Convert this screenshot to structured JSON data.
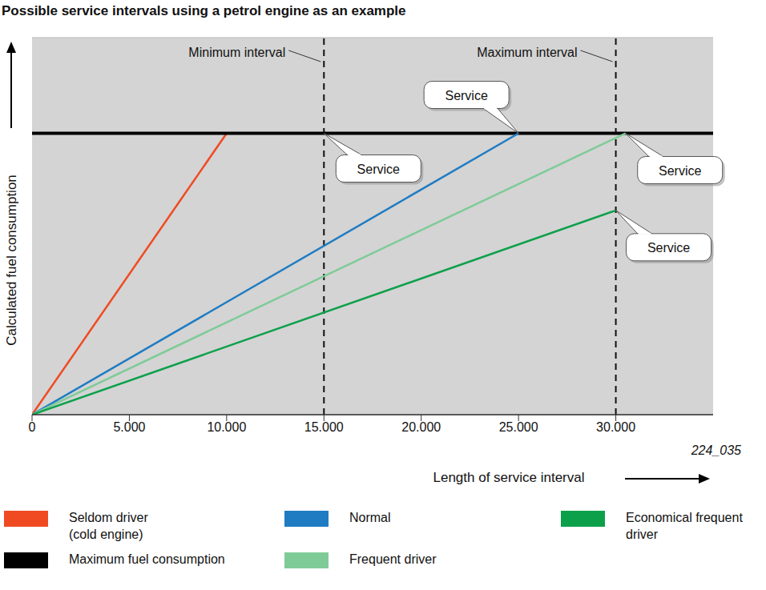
{
  "chart_data": {
    "type": "line",
    "title": "Possible service intervals using a petrol engine as an example",
    "x_label": "Length of service interval",
    "y_label": "Calculated fuel consumption",
    "figure_id": "224_035",
    "xlim": [
      0,
      35000
    ],
    "xticks": [
      0,
      {
        "value": 5000,
        "label": "5.000"
      },
      {
        "value": 10000,
        "label": "10.000"
      },
      {
        "value": 15000,
        "label": "15.000"
      },
      {
        "value": 20000,
        "label": "20.000"
      },
      {
        "value": 25000,
        "label": "25.000"
      },
      {
        "value": 30000,
        "label": "30.000"
      }
    ],
    "ylim": [
      0,
      6.7
    ],
    "yticks": [
      0,
      1,
      2,
      3,
      4,
      5,
      6
    ],
    "tick_labels": "x",
    "grid": true,
    "legend": "bottom",
    "series": [
      {
        "name": "Seldom driver (cold engine)",
        "color": "#f04a23",
        "x": [
          0,
          10000
        ],
        "values": [
          0,
          5
        ]
      },
      {
        "name": "Maximum fuel consumption",
        "color": "#000000",
        "x": [
          0,
          35000
        ],
        "values": [
          5,
          5
        ]
      },
      {
        "name": "Normal",
        "color": "#1f7cc3",
        "x": [
          0,
          25000
        ],
        "values": [
          0,
          5
        ]
      },
      {
        "name": "Frequent driver",
        "color": "#7fcb98",
        "x": [
          0,
          30500
        ],
        "values": [
          0,
          5
        ]
      },
      {
        "name": "Economical frequent driver",
        "color": "#0da04b",
        "x": [
          0,
          30000
        ],
        "values": [
          0,
          3.63
        ]
      }
    ],
    "reference_lines": [
      {
        "x": 15000,
        "label": "Minimum interval"
      },
      {
        "x": 30000,
        "label": "Maximum interval"
      }
    ],
    "annotations": [
      {
        "text": "Service",
        "x": 25000,
        "y": 5
      },
      {
        "text": "Service",
        "x": 15000,
        "y": 5
      },
      {
        "text": "Service",
        "x": 30500,
        "y": 5
      },
      {
        "text": "Service",
        "x": 30000,
        "y": 3.63
      }
    ]
  }
}
